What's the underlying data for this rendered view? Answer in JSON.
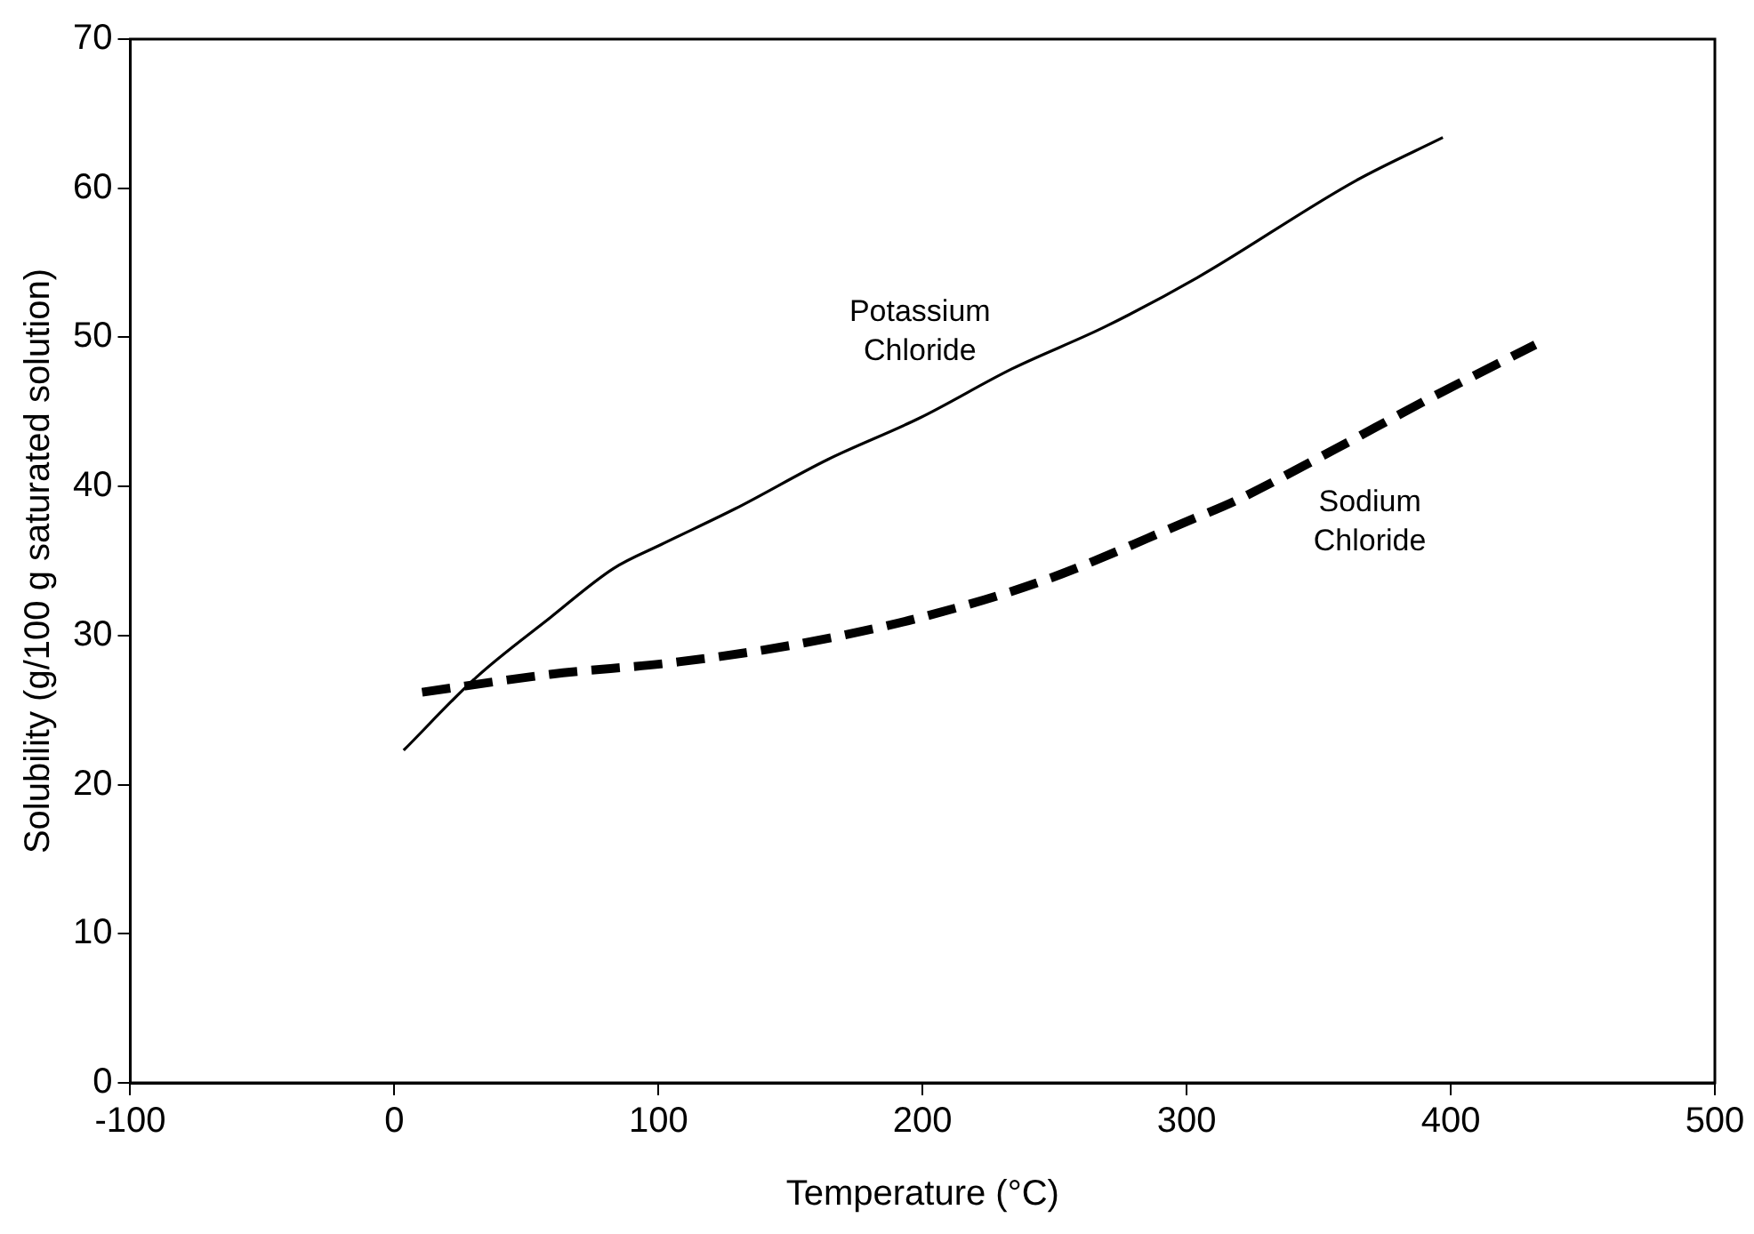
{
  "chart_data": {
    "type": "line",
    "xlabel": "Temperature (°C)",
    "ylabel": "Solubility (g/100 g saturated solution)",
    "xlim": [
      -100,
      500
    ],
    "xticks": [
      -100,
      0,
      100,
      200,
      300,
      400,
      500
    ],
    "ylim": [
      0,
      70
    ],
    "yticks": [
      0,
      10,
      20,
      30,
      40,
      50,
      60,
      70
    ],
    "grid": false,
    "legend": false,
    "marker": "none",
    "series": [
      {
        "name": "Potassium\nChloride",
        "color": "#000000",
        "line_style": "solid",
        "x": [
          3.5,
          31,
          59,
          83,
          101,
          129,
          164,
          199,
          234,
          269,
          304,
          364,
          397
        ],
        "values": [
          22.3,
          27.2,
          31.2,
          34.5,
          36.1,
          38.5,
          41.8,
          44.6,
          47.9,
          50.7,
          54.0,
          60.5,
          63.4
        ]
      },
      {
        "name": "Sodium\nChloride",
        "color": "#000000",
        "line_style": "dashed",
        "x": [
          10.5,
          59,
          106,
          152,
          199,
          246,
          302,
          318,
          353,
          392,
          432
        ],
        "values": [
          26.2,
          27.4,
          28.2,
          29.4,
          31.2,
          33.7,
          37.8,
          39.0,
          42.2,
          45.9,
          49.5
        ]
      }
    ]
  }
}
